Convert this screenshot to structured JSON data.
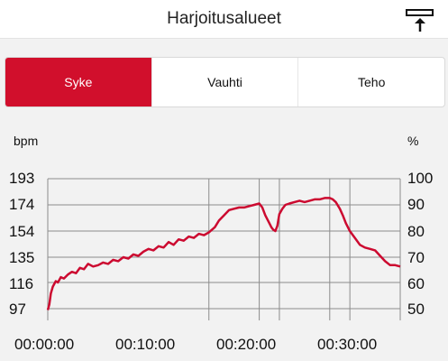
{
  "header": {
    "title": "Harjoitusalueet",
    "export_icon": "export-up-arrow-icon"
  },
  "tabs": [
    {
      "label": "Syke",
      "active": true
    },
    {
      "label": "Vauhti",
      "active": false
    },
    {
      "label": "Teho",
      "active": false
    }
  ],
  "chart_data": {
    "type": "line",
    "ylabel_left": "bpm",
    "ylabel_right": "%",
    "yticks_left": [
      "193",
      "174",
      "154",
      "135",
      "116",
      "97"
    ],
    "yticks_right": [
      "100",
      "90",
      "80",
      "70",
      "60",
      "50"
    ],
    "xticks": [
      "00:00:00",
      "00:10:00",
      "00:20:00",
      "00:30:00"
    ],
    "x_unit": "minutes",
    "xlim": [
      0,
      35
    ],
    "ylim": [
      91,
      198
    ],
    "zones": [
      {
        "from": 174,
        "to": 193,
        "color": "#f6d3e2",
        "active_color": "#e8607f"
      },
      {
        "from": 154,
        "to": 174,
        "color": "#fdf2d9",
        "active_color": "#f9d06a"
      },
      {
        "from": 135,
        "to": 154,
        "color": "#b8d48c",
        "active_color": "#eef3e6"
      },
      {
        "from": 116,
        "to": 135,
        "color": "#7fd4ee",
        "active_color": "#e0f3fb"
      },
      {
        "from": 97,
        "to": 116,
        "color": "#d6dbdc",
        "active_color": "#f5f6f6"
      }
    ],
    "segments": [
      {
        "start": 0,
        "end": 16,
        "zone": 2
      },
      {
        "start": 16,
        "end": 21,
        "zone": 1
      },
      {
        "start": 21,
        "end": 23,
        "zone": 2
      },
      {
        "start": 23,
        "end": 28,
        "zone": 0
      },
      {
        "start": 28,
        "end": 30,
        "zone": 2
      },
      {
        "start": 30,
        "end": 35,
        "zone": 3
      }
    ],
    "series": [
      {
        "color": "#cc0a30",
        "x": [
          0,
          0.15,
          0.3,
          0.5,
          0.8,
          1,
          1.3,
          1.6,
          2,
          2.4,
          2.8,
          3.2,
          3.6,
          4,
          4.5,
          5,
          5.5,
          6,
          6.5,
          7,
          7.5,
          8,
          8.5,
          9,
          9.5,
          10,
          10.5,
          11,
          11.5,
          12,
          12.5,
          13,
          13.5,
          14,
          14.5,
          15,
          15.5,
          16,
          16.3,
          16.6,
          17,
          17.5,
          18,
          18.5,
          19,
          19.5,
          20,
          20.5,
          21,
          21.3,
          21.6,
          22,
          22.2,
          22.4,
          22.6,
          22.8,
          23,
          23.3,
          23.6,
          24,
          24.5,
          25,
          25.5,
          26,
          26.5,
          27,
          27.5,
          28,
          28.3,
          28.6,
          29,
          29.3,
          29.6,
          30,
          30.5,
          31,
          31.5,
          32,
          32.5,
          33,
          33.5,
          34,
          34.5,
          35
        ],
        "y": [
          96,
          100,
          108,
          113,
          117,
          116,
          120,
          119,
          122,
          124,
          123,
          127,
          126,
          130,
          128,
          129,
          131,
          130,
          133,
          132,
          135,
          134,
          137,
          136,
          139,
          141,
          140,
          143,
          142,
          146,
          144,
          148,
          147,
          150,
          149,
          152,
          151,
          153,
          155,
          157,
          162,
          166,
          170,
          171,
          172,
          172,
          173,
          174,
          175,
          172,
          166,
          160,
          157,
          155,
          154,
          158,
          167,
          171,
          174,
          175,
          176,
          177,
          176,
          177,
          178,
          178,
          179,
          179,
          178,
          176,
          171,
          166,
          160,
          154,
          149,
          144,
          142,
          141,
          140,
          136,
          132,
          129,
          129,
          128
        ]
      }
    ]
  }
}
